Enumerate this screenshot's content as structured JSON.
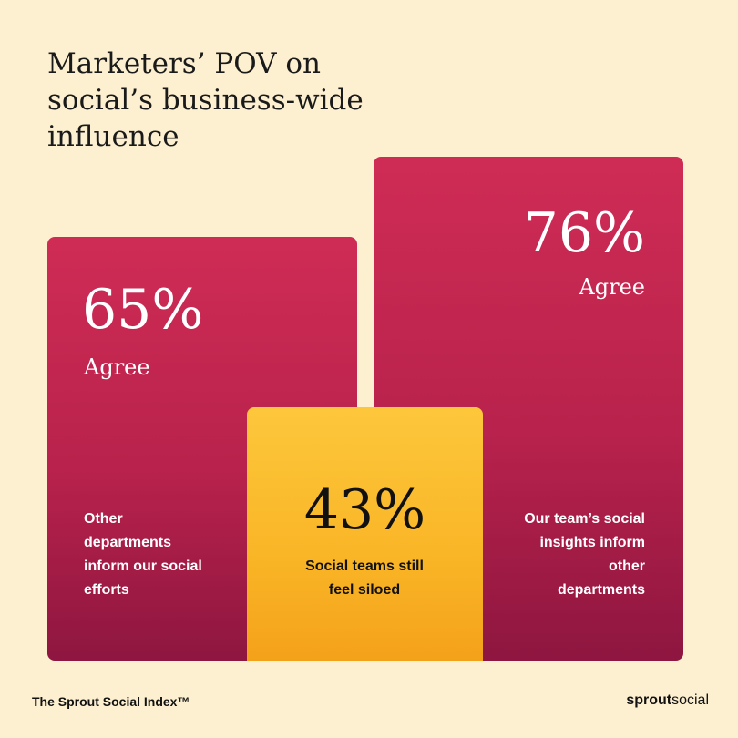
{
  "title": "Marketers’ POV on social’s business-wide influence",
  "cards": [
    {
      "value": "65%",
      "label": "Agree",
      "description": "Other departments inform our social efforts"
    },
    {
      "value": "76%",
      "label": "Agree",
      "description": "Our team’s social insights inform other departments"
    },
    {
      "value": "43%",
      "description": "Social teams still feel siloed"
    }
  ],
  "footer": {
    "source": "The Sprout Social Index™",
    "brand_bold": "sprout",
    "brand": "social"
  }
}
